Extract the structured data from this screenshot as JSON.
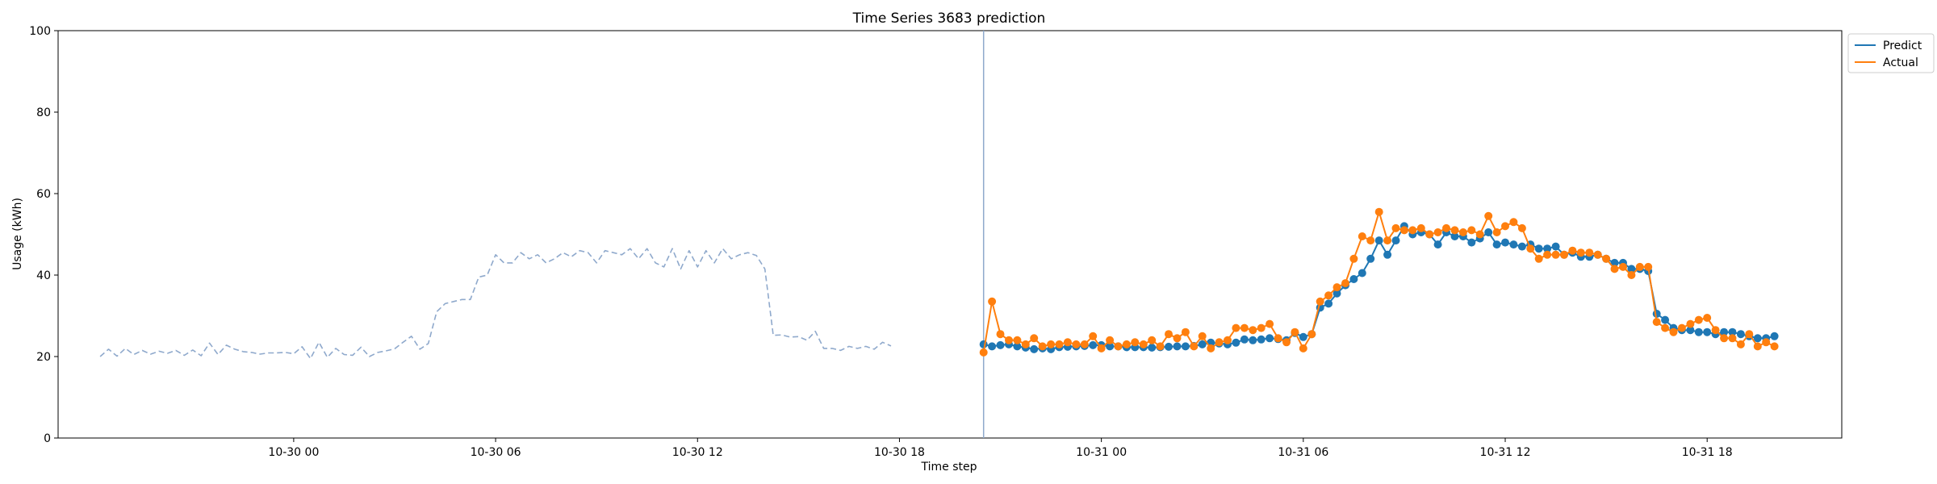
{
  "chart_data": {
    "type": "line",
    "title": "Time Series 3683 prediction",
    "xlabel": "Time step",
    "ylabel": "Usage (kWh)",
    "ylim": [
      0,
      100
    ],
    "y_ticks": [
      0,
      20,
      40,
      60,
      80,
      100
    ],
    "x_ticks": [
      {
        "label": "10-30 00",
        "t": "2000-10-30T00:00"
      },
      {
        "label": "10-30 06",
        "t": "2000-10-30T06:00"
      },
      {
        "label": "10-30 12",
        "t": "2000-10-30T12:00"
      },
      {
        "label": "10-30 18",
        "t": "2000-10-30T18:00"
      },
      {
        "label": "10-31 00",
        "t": "2000-10-31T00:00"
      },
      {
        "label": "10-31 06",
        "t": "2000-10-31T06:00"
      },
      {
        "label": "10-31 12",
        "t": "2000-10-31T12:00"
      },
      {
        "label": "10-31 18",
        "t": "2000-10-31T18:00"
      }
    ],
    "xlim": [
      "2000-10-29T17:00",
      "2000-10-31T22:00"
    ],
    "interval_minutes": 15,
    "forecast_start": "2000-10-30T20:30",
    "grid": false,
    "legend": {
      "position": "top-right",
      "entries": [
        "Predict",
        "Actual"
      ]
    },
    "colors": {
      "predict": "#1f77b4",
      "actual": "#ff7f0e",
      "history": "#8fa9cc",
      "divider": "#8fa9cc"
    },
    "series": [
      {
        "name": "History",
        "style": "dashed",
        "start": "2000-10-29T18:15",
        "values": [
          20.0,
          21.8,
          20.1,
          22.0,
          20.5,
          21.5,
          20.6,
          21.3,
          20.8,
          21.5,
          20.3,
          21.6,
          20.2,
          23.3,
          20.5,
          22.8,
          21.8,
          21.2,
          21.0,
          20.6,
          20.9,
          20.9,
          21.0,
          20.7,
          22.4,
          19.5,
          23.5,
          19.8,
          22.0,
          20.5,
          20.3,
          22.3,
          20.0,
          21.0,
          21.4,
          21.9,
          23.5,
          25.0,
          21.8,
          23.2,
          31.0,
          33.0,
          33.5,
          34.0,
          34.0,
          39.5,
          40.0,
          45.0,
          43.0,
          43.0,
          45.5,
          44.0,
          45.0,
          43.0,
          44.0,
          45.5,
          44.5,
          46.0,
          45.5,
          43.0,
          46.0,
          45.5,
          45.0,
          46.5,
          44.0,
          46.5,
          43.0,
          42.0,
          46.5,
          41.5,
          46.0,
          42.0,
          46.0,
          43.0,
          46.5,
          44.0,
          45.0,
          45.5,
          44.8,
          41.5,
          25.2,
          25.3,
          24.8,
          24.9,
          24.0,
          26.2,
          22.0,
          22.0,
          21.5,
          22.5,
          22.0,
          22.5,
          21.8,
          23.5,
          22.6
        ]
      },
      {
        "name": "Predict",
        "start": "2000-10-30T20:30",
        "values": [
          23.0,
          22.5,
          22.8,
          23.0,
          22.5,
          22.2,
          21.8,
          22.0,
          21.8,
          22.3,
          22.4,
          22.5,
          22.6,
          22.8,
          22.8,
          22.5,
          22.5,
          22.3,
          22.3,
          22.3,
          22.2,
          22.3,
          22.4,
          22.5,
          22.5,
          22.6,
          23.0,
          23.4,
          23.2,
          23.0,
          23.4,
          24.2,
          24.0,
          24.2,
          24.5,
          24.3,
          24.0,
          25.8,
          24.8,
          25.5,
          32.0,
          33.0,
          35.5,
          37.5,
          39.0,
          40.5,
          44.0,
          48.5,
          45.0,
          48.5,
          52.0,
          50.0,
          50.5,
          50.0,
          47.5,
          50.5,
          49.5,
          49.5,
          48.0,
          49.0,
          50.5,
          47.5,
          48.0,
          47.5,
          47.0,
          47.5,
          46.5,
          46.5,
          47.0,
          45.0,
          45.5,
          44.5,
          44.5,
          45.0,
          44.0,
          43.0,
          43.0,
          41.5,
          41.5,
          41.0,
          30.5,
          29.0,
          27.0,
          26.5,
          26.5,
          26.0,
          26.0,
          25.5,
          26.0,
          26.0,
          25.5,
          25.0,
          24.5,
          24.5,
          25.0
        ]
      },
      {
        "name": "Actual",
        "start": "2000-10-30T20:30",
        "values": [
          21.0,
          33.5,
          25.5,
          24.0,
          24.0,
          23.0,
          24.5,
          22.5,
          23.0,
          23.0,
          23.5,
          23.0,
          23.0,
          25.0,
          22.0,
          24.0,
          22.5,
          23.0,
          23.5,
          23.0,
          24.0,
          22.5,
          25.5,
          24.5,
          26.0,
          22.5,
          25.0,
          22.0,
          23.5,
          24.0,
          27.0,
          27.0,
          26.5,
          27.0,
          28.0,
          24.5,
          23.5,
          26.0,
          22.0,
          25.5,
          33.5,
          35.0,
          37.0,
          38.0,
          44.0,
          49.5,
          48.5,
          55.5,
          48.5,
          51.5,
          51.0,
          51.0,
          51.5,
          50.0,
          50.5,
          51.5,
          51.0,
          50.5,
          51.0,
          50.0,
          54.5,
          50.5,
          52.0,
          53.0,
          51.5,
          46.5,
          44.0,
          45.0,
          45.0,
          45.0,
          46.0,
          45.5,
          45.5,
          45.0,
          44.0,
          41.5,
          42.0,
          40.0,
          42.0,
          42.0,
          28.5,
          27.0,
          26.0,
          27.0,
          28.0,
          29.0,
          29.5,
          26.5,
          24.5,
          24.5,
          23.0,
          25.5,
          22.5,
          23.5,
          22.5
        ]
      }
    ]
  }
}
